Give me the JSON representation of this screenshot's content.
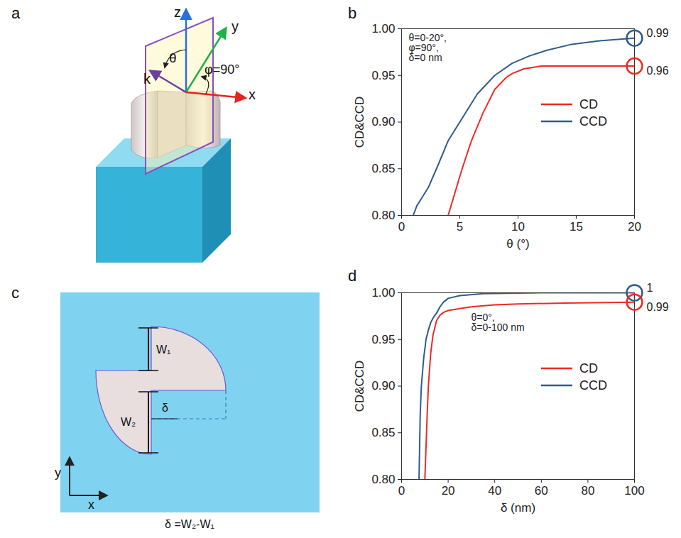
{
  "chart_data": [
    {
      "panel": "b",
      "type": "line",
      "x_label": "θ (°)",
      "y_label": "CD&CCD",
      "xlim": [
        0,
        20
      ],
      "xticks": [
        0,
        5,
        10,
        15,
        20
      ],
      "ylim": [
        0.8,
        1.0
      ],
      "yticks": [
        {
          "value": 0.8,
          "label": "0.80"
        },
        {
          "value": 0.85,
          "label": "0.85"
        },
        {
          "value": 0.9,
          "label": "0.90"
        },
        {
          "value": 0.95,
          "label": "0.95"
        },
        {
          "value": 1.0,
          "label": "1.00"
        }
      ],
      "grid": false,
      "legend": "right",
      "annotations": [
        "θ=0-20°,\nφ=90°,\nδ=0 nm"
      ],
      "end_markers": [
        {
          "x": 20,
          "value": 0.99,
          "label": "0.99",
          "color": "#2e5d8c"
        },
        {
          "x": 20,
          "value": 0.96,
          "label": "0.96",
          "color": "#ee2a24"
        }
      ],
      "series": [
        {
          "name": "CD",
          "color": "#ee2a24",
          "x": [
            4,
            5.2,
            6,
            7,
            8,
            9,
            9.5,
            10.5,
            11,
            12,
            15,
            20
          ],
          "values": [
            0.8,
            0.85,
            0.88,
            0.91,
            0.935,
            0.948,
            0.952,
            0.957,
            0.958,
            0.96,
            0.96,
            0.96
          ]
        },
        {
          "name": "CCD",
          "color": "#2e5d8c",
          "x": [
            1,
            1.3,
            1.8,
            2.3,
            3,
            4,
            5,
            6.5,
            8,
            9.5,
            11,
            12.5,
            14.5,
            17,
            20
          ],
          "values": [
            0.8,
            0.81,
            0.82,
            0.83,
            0.85,
            0.88,
            0.9,
            0.93,
            0.95,
            0.963,
            0.971,
            0.977,
            0.983,
            0.987,
            0.99
          ]
        }
      ]
    },
    {
      "panel": "d",
      "type": "line",
      "x_label": "δ (nm)",
      "y_label": "CD&CCD",
      "xlim": [
        0,
        100
      ],
      "xticks": [
        0,
        20,
        40,
        60,
        80,
        100
      ],
      "ylim": [
        0.8,
        1.0
      ],
      "yticks": [
        {
          "value": 0.8,
          "label": "0.80"
        },
        {
          "value": 0.85,
          "label": "0.85"
        },
        {
          "value": 0.9,
          "label": "0.90"
        },
        {
          "value": 0.95,
          "label": "0.95"
        },
        {
          "value": 1.0,
          "label": "1.00"
        }
      ],
      "grid": false,
      "legend": "right",
      "annotations": [
        "θ=0°,\nδ=0-100 nm"
      ],
      "end_markers": [
        {
          "x": 100,
          "value": 1,
          "label": "1",
          "color": "#2e5d8c"
        },
        {
          "x": 100,
          "value": 0.99,
          "label": "0.99",
          "color": "#ee2a24"
        }
      ],
      "series": [
        {
          "name": "CD",
          "color": "#ee2a24",
          "x": [
            10,
            11,
            11.5,
            12.5,
            13.5,
            15,
            16.5,
            18,
            20,
            25,
            30,
            40,
            50,
            70,
            100
          ],
          "values": [
            0.8,
            0.87,
            0.9,
            0.935,
            0.955,
            0.97,
            0.976,
            0.979,
            0.981,
            0.983,
            0.985,
            0.987,
            0.988,
            0.989,
            0.99
          ]
        },
        {
          "name": "CCD",
          "color": "#2e5d8c",
          "x": [
            7.5,
            8,
            8.5,
            9.5,
            10.5,
            11.5,
            12.5,
            14,
            15,
            16.5,
            18,
            20,
            25,
            35,
            60,
            100
          ],
          "values": [
            0.8,
            0.87,
            0.9,
            0.93,
            0.95,
            0.96,
            0.968,
            0.975,
            0.978,
            0.985,
            0.99,
            0.994,
            0.997,
            0.999,
            1.0,
            1.0
          ]
        }
      ]
    }
  ],
  "diagrams": [
    {
      "panel": "a",
      "labels": {
        "z": "z",
        "y": "y",
        "x": "x",
        "k": "k",
        "theta": "θ",
        "phi": "φ=90°"
      }
    },
    {
      "panel": "c",
      "labels": {
        "w1": "W₁",
        "w2": "W₂",
        "delta": "δ",
        "y": "y",
        "x": "x",
        "formula": "δ =W₂-W₁"
      }
    }
  ]
}
